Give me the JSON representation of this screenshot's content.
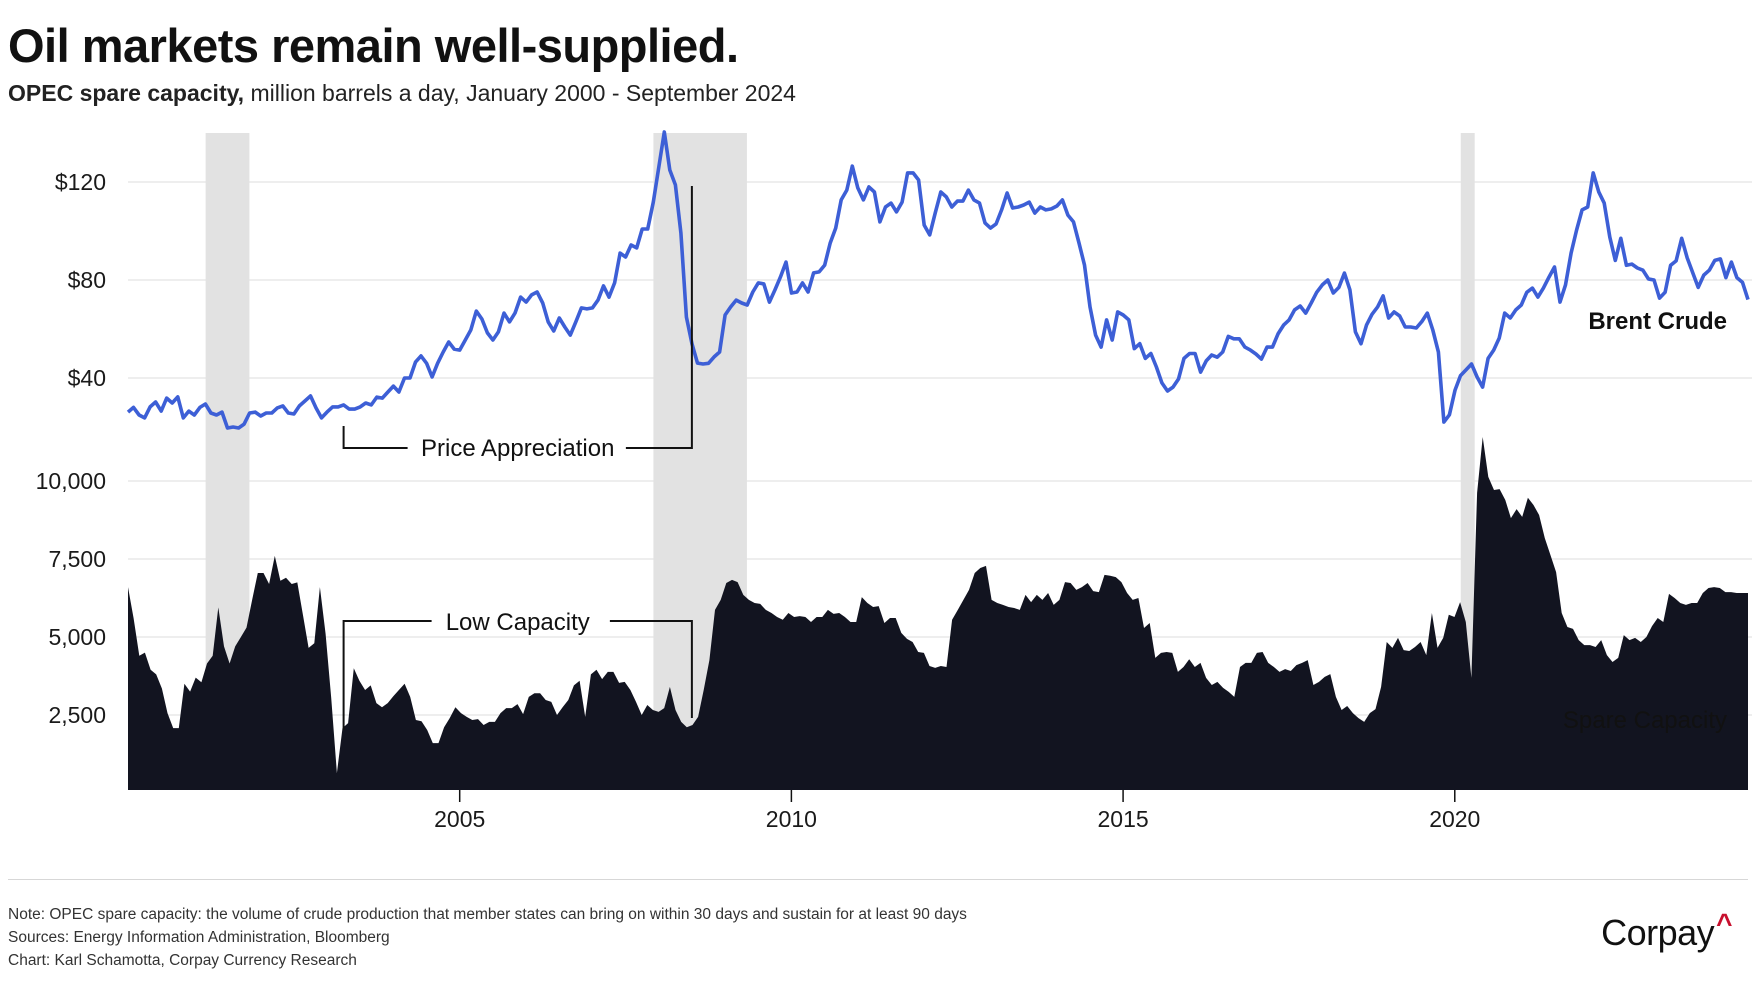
{
  "header": {
    "title": "Oil markets remain well-supplied.",
    "subtitle_bold": "OPEC spare capacity,",
    "subtitle_rest": " million barrels a day, January 2000 - September 2024"
  },
  "footer": {
    "note": "Note: OPEC spare capacity: the volume of crude production that member states can bring on within 30 days and sustain for at least 90 days",
    "sources": "Sources: Energy Information Administration, Bloomberg",
    "credit": "Chart: Karl Schamotta, Corpay Currency Research",
    "logo_text": "Corpay",
    "logo_mark": "^"
  },
  "colors": {
    "price_line": "#3d5fd6",
    "capacity_area": "#121420",
    "recession_shade": "#e2e2e2",
    "gridline": "#e3e3e3",
    "logo_accent": "#c8102e"
  },
  "chart_data": [
    {
      "type": "line",
      "name": "Brent Crude",
      "label": "Brent Crude",
      "units": "USD per barrel",
      "x_start": "2000-01",
      "x_end": "2024-09",
      "ylim": [
        20,
        140
      ],
      "yticks": [
        40,
        80,
        120
      ],
      "ytick_labels": [
        "$40",
        "$80",
        "$120"
      ],
      "grid": true,
      "values": [
        26.1,
        28,
        24.9,
        23.7,
        28.2,
        30.2,
        26.5,
        31.8,
        29.8,
        32.3,
        23.7,
        26.5,
        24.9,
        28,
        29.4,
        25.7,
        24.9,
        26.1,
        19.6,
        20,
        19.6,
        21.2,
        25.7,
        26.1,
        24.5,
        25.7,
        25.7,
        27.8,
        28.6,
        25.7,
        25.3,
        28.6,
        30.6,
        32.7,
        27.8,
        23.7,
        26.1,
        28.2,
        28.2,
        29,
        27.3,
        27.3,
        28.2,
        29.8,
        29,
        32.2,
        31.8,
        34.3,
        36.7,
        34.3,
        40,
        40,
        46.5,
        49,
        46,
        40.4,
        46,
        50.6,
        54.7,
        51.8,
        51.4,
        55.5,
        59.6,
        67.3,
        64.1,
        58.4,
        55.5,
        58.8,
        66.5,
        62.9,
        66.5,
        73,
        71,
        73.9,
        75.1,
        70.6,
        62.9,
        59.2,
        64.5,
        60.8,
        57.5,
        62.9,
        68.6,
        68.2,
        68.6,
        71.8,
        77.6,
        73,
        78.8,
        91,
        89.4,
        94.3,
        93.1,
        100.8,
        100.8,
        111.8,
        126.1,
        140.4,
        124.9,
        118.8,
        99.2,
        64.9,
        53.9,
        46.1,
        45.7,
        46,
        48.6,
        50.6,
        65.7,
        69,
        71.8,
        70.6,
        69.8,
        75.1,
        78.8,
        78.4,
        71,
        75.9,
        81.2,
        87.3,
        74.7,
        75.1,
        78.8,
        75.1,
        82.9,
        83.3,
        86.1,
        95.1,
        101.2,
        112.7,
        116.7,
        126.5,
        117.6,
        112.7,
        118,
        115.9,
        103.7,
        109.8,
        111.4,
        107.8,
        111.8,
        123.7,
        123.7,
        120.8,
        102.4,
        98.4,
        107.3,
        115.9,
        113.9,
        109.8,
        112.2,
        112.2,
        116.7,
        112.7,
        111.4,
        103.3,
        101.2,
        102.9,
        108.6,
        115.5,
        109.4,
        109.8,
        110.6,
        111.8,
        107.3,
        109.8,
        108.6,
        109,
        110.2,
        112.7,
        106.5,
        103.7,
        95.1,
        86.1,
        69,
        57.5,
        52.6,
        63.7,
        55.5,
        67,
        65.7,
        63.7,
        52,
        54,
        48,
        50,
        44.5,
        38,
        34.7,
        36.3,
        39.6,
        48,
        50,
        50,
        42.4,
        47,
        49.4,
        48.5,
        50.6,
        57,
        56,
        56,
        52.6,
        51.4,
        49.8,
        47.7,
        52.6,
        52.6,
        58,
        61.6,
        63.7,
        67.8,
        69.4,
        66.5,
        70.6,
        75,
        78,
        80,
        74.7,
        77,
        82.8,
        76,
        58.8,
        54,
        61.6,
        66,
        69,
        73.5,
        64.5,
        67,
        65.3,
        60.8,
        60.8,
        60.4,
        63,
        66.5,
        59.6,
        50.6,
        22,
        25,
        35,
        41,
        43.3,
        45.7,
        40.4,
        36.3,
        48,
        51.4,
        56.3,
        66.5,
        64.5,
        67.8,
        69.8,
        75,
        76.7,
        73,
        76.7,
        81.2,
        85.3,
        71,
        78,
        91,
        100.4,
        108.6,
        109.8,
        123.7,
        116,
        111.4,
        97.5,
        88,
        97,
        86,
        86.5,
        84.9,
        84,
        80.4,
        80,
        72.6,
        75,
        86,
        87.8,
        97,
        89,
        83,
        77,
        82,
        84,
        88,
        88.6,
        81,
        87.3,
        81,
        79,
        72
      ]
    },
    {
      "type": "area",
      "name": "Spare Capacity",
      "label": "Spare Capacity",
      "units": "thousand barrels a day",
      "x_start": "2000-01",
      "x_end": "2024-09",
      "ylim": [
        0,
        10000
      ],
      "yticks": [
        2500,
        5000,
        7500,
        10000
      ],
      "ytick_labels": [
        "2,500",
        "5,000",
        "7,500",
        "10,000"
      ],
      "grid": true,
      "values": [
        6600,
        5600,
        4400,
        4500,
        3950,
        3800,
        3350,
        2560,
        2080,
        2080,
        3500,
        3250,
        3700,
        3550,
        4150,
        4400,
        5950,
        4700,
        4150,
        4700,
        5000,
        5300,
        6200,
        7050,
        7050,
        6700,
        7600,
        6800,
        6900,
        6700,
        6750,
        5700,
        4650,
        4800,
        6600,
        5100,
        3050,
        640,
        2080,
        2240,
        4000,
        3600,
        3300,
        3450,
        2880,
        2750,
        2880,
        3100,
        3300,
        3500,
        3080,
        2340,
        2300,
        2020,
        1600,
        1600,
        2110,
        2400,
        2750,
        2560,
        2440,
        2340,
        2370,
        2180,
        2280,
        2280,
        2560,
        2720,
        2720,
        2850,
        2530,
        3080,
        3200,
        3200,
        2980,
        2920,
        2500,
        2750,
        2980,
        3450,
        3600,
        2440,
        3800,
        3950,
        3650,
        3880,
        3880,
        3530,
        3560,
        3300,
        2920,
        2500,
        2820,
        2660,
        2600,
        2720,
        3400,
        2660,
        2280,
        2110,
        2180,
        2440,
        3300,
        4260,
        5870,
        6190,
        6730,
        6830,
        6760,
        6350,
        6190,
        6090,
        6060,
        5870,
        5770,
        5640,
        5550,
        5770,
        5640,
        5670,
        5640,
        5480,
        5640,
        5640,
        5870,
        5740,
        5770,
        5640,
        5480,
        5480,
        6280,
        6090,
        5960,
        5990,
        5450,
        5610,
        5610,
        5130,
        4940,
        4840,
        4520,
        4490,
        4070,
        4010,
        4070,
        4040,
        5550,
        5870,
        6190,
        6510,
        7050,
        7210,
        7280,
        6190,
        6090,
        6030,
        5960,
        5930,
        5870,
        6350,
        6120,
        6350,
        6190,
        6410,
        6030,
        6190,
        6760,
        6730,
        6510,
        6600,
        6730,
        6470,
        6440,
        6990,
        6960,
        6920,
        6760,
        6410,
        6190,
        6250,
        5290,
        5450,
        4330,
        4490,
        4520,
        4490,
        3880,
        4040,
        4290,
        4040,
        4170,
        3690,
        3460,
        3560,
        3370,
        3240,
        3080,
        4040,
        4170,
        4170,
        4490,
        4520,
        4170,
        4040,
        3880,
        3970,
        3910,
        4100,
        4170,
        4260,
        3460,
        3560,
        3720,
        3810,
        3080,
        2660,
        2790,
        2560,
        2400,
        2280,
        2560,
        2690,
        3400,
        4840,
        4650,
        4970,
        4580,
        4550,
        4680,
        4840,
        4420,
        5770,
        4650,
        4970,
        5710,
        5640,
        6120,
        5480,
        3690,
        9620,
        11410,
        10130,
        9710,
        9740,
        9390,
        8810,
        9100,
        8850,
        9460,
        9230,
        8910,
        8170,
        7630,
        7080,
        5770,
        5320,
        5260,
        4900,
        4740,
        4740,
        4680,
        4900,
        4420,
        4200,
        4330,
        5060,
        4900,
        4970,
        4840,
        5000,
        5350,
        5610,
        5480,
        6380,
        6250,
        6090,
        6030,
        6090,
        6090,
        6410,
        6570,
        6600,
        6570,
        6440,
        6440,
        6410,
        6410,
        6410
      ]
    }
  ],
  "x_axis": {
    "ticks": [
      2005,
      2010,
      2015,
      2020
    ],
    "tick_labels": [
      "2005",
      "2010",
      "2015",
      "2020"
    ],
    "range": [
      2000.0,
      2024.42
    ]
  },
  "recessions": [
    {
      "start": 2001.17,
      "end": 2001.83
    },
    {
      "start": 2007.92,
      "end": 2009.33
    },
    {
      "start": 2020.09,
      "end": 2020.3
    }
  ],
  "annotations": {
    "price_appreciation": {
      "text": "Price Appreciation",
      "from": 2003.25,
      "to": 2008.5
    },
    "low_capacity": {
      "text": "Low Capacity",
      "from": 2003.25,
      "to": 2008.5
    }
  }
}
